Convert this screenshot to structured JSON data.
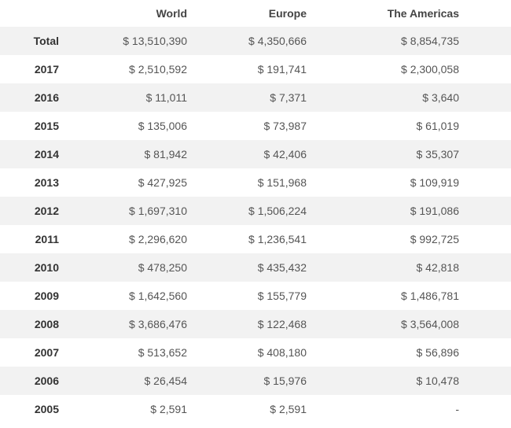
{
  "table": {
    "headers": [
      "",
      "World",
      "Europe",
      "The Americas"
    ],
    "rows": [
      {
        "label": "Total",
        "world": "$ 13,510,390",
        "europe": "$ 4,350,666",
        "americas": "$ 8,854,735"
      },
      {
        "label": "2017",
        "world": "$ 2,510,592",
        "europe": "$ 191,741",
        "americas": "$ 2,300,058"
      },
      {
        "label": "2016",
        "world": "$ 11,011",
        "europe": "$ 7,371",
        "americas": "$ 3,640"
      },
      {
        "label": "2015",
        "world": "$ 135,006",
        "europe": "$ 73,987",
        "americas": "$ 61,019"
      },
      {
        "label": "2014",
        "world": "$ 81,942",
        "europe": "$ 42,406",
        "americas": "$ 35,307"
      },
      {
        "label": "2013",
        "world": "$ 427,925",
        "europe": "$ 151,968",
        "americas": "$ 109,919"
      },
      {
        "label": "2012",
        "world": "$ 1,697,310",
        "europe": "$ 1,506,224",
        "americas": "$ 191,086"
      },
      {
        "label": "2011",
        "world": "$ 2,296,620",
        "europe": "$ 1,236,541",
        "americas": "$ 992,725"
      },
      {
        "label": "2010",
        "world": "$ 478,250",
        "europe": "$ 435,432",
        "americas": "$ 42,818"
      },
      {
        "label": "2009",
        "world": "$ 1,642,560",
        "europe": "$ 155,779",
        "americas": "$ 1,486,781"
      },
      {
        "label": "2008",
        "world": "$ 3,686,476",
        "europe": "$ 122,468",
        "americas": "$ 3,564,008"
      },
      {
        "label": "2007",
        "world": "$ 513,652",
        "europe": "$ 408,180",
        "americas": "$ 56,896"
      },
      {
        "label": "2006",
        "world": "$ 26,454",
        "europe": "$ 15,976",
        "americas": "$ 10,478"
      },
      {
        "label": "2005",
        "world": "$ 2,591",
        "europe": "$ 2,591",
        "americas": "-"
      }
    ]
  }
}
